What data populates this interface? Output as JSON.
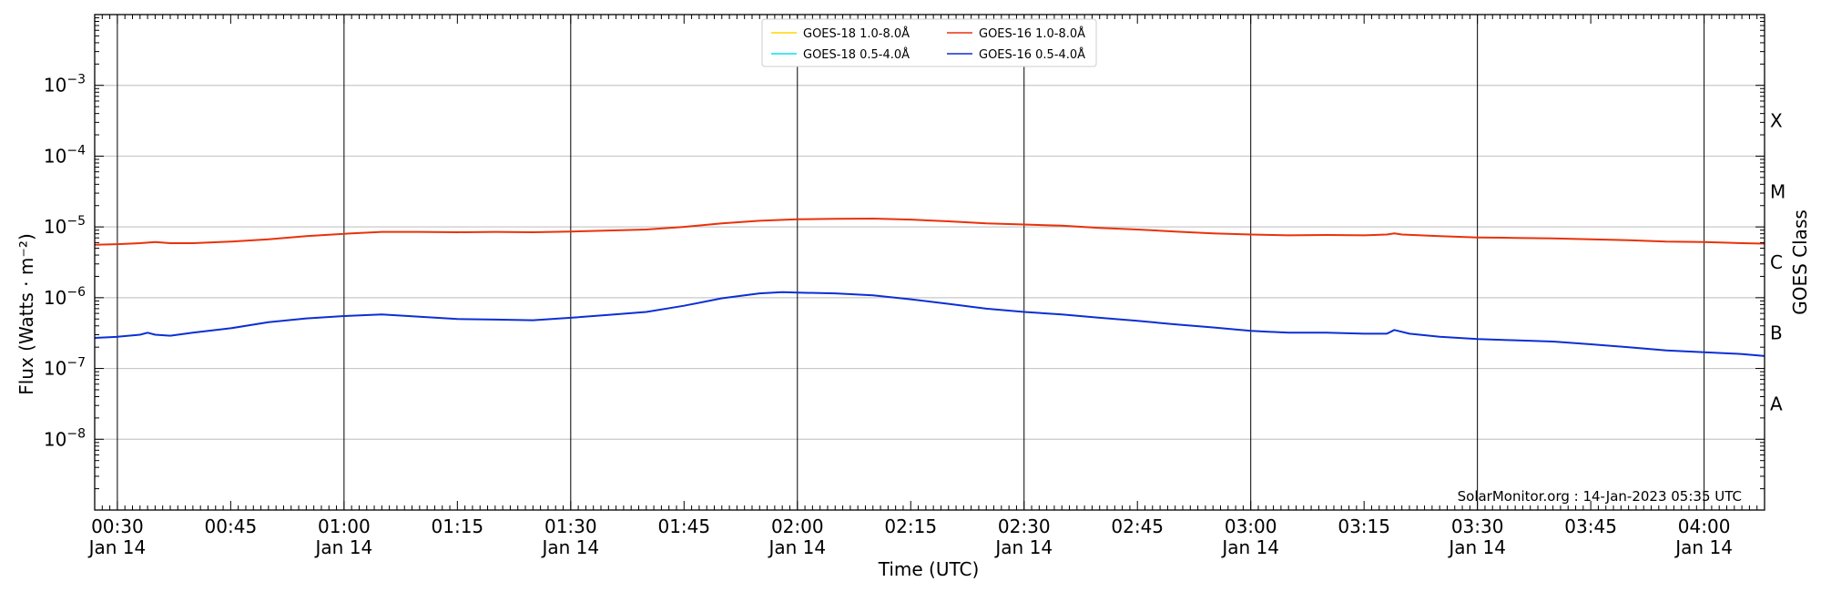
{
  "chart_data": {
    "type": "line",
    "xlabel": "Time (UTC)",
    "ylabel": "Flux (Watts · m⁻²)",
    "right_ylabel": "GOES Class",
    "xlim": [
      "00:27",
      "04:08"
    ],
    "ylim_log10": [
      -9,
      -2
    ],
    "y_scale": "log",
    "grid": "horizontal at decades, vertical every 30 min",
    "legend_position": "top-center",
    "credit": "SolarMonitor.org : 14-Jan-2023 05:35 UTC",
    "x_ticks": [
      {
        "time": "00:30",
        "label": "00:30",
        "date": "Jan 14"
      },
      {
        "time": "00:45",
        "label": "00:45",
        "date": ""
      },
      {
        "time": "01:00",
        "label": "01:00",
        "date": "Jan 14"
      },
      {
        "time": "01:15",
        "label": "01:15",
        "date": ""
      },
      {
        "time": "01:30",
        "label": "01:30",
        "date": "Jan 14"
      },
      {
        "time": "01:45",
        "label": "01:45",
        "date": ""
      },
      {
        "time": "02:00",
        "label": "02:00",
        "date": "Jan 14"
      },
      {
        "time": "02:15",
        "label": "02:15",
        "date": ""
      },
      {
        "time": "02:30",
        "label": "02:30",
        "date": "Jan 14"
      },
      {
        "time": "02:45",
        "label": "02:45",
        "date": ""
      },
      {
        "time": "03:00",
        "label": "03:00",
        "date": "Jan 14"
      },
      {
        "time": "03:15",
        "label": "03:15",
        "date": ""
      },
      {
        "time": "03:30",
        "label": "03:30",
        "date": "Jan 14"
      },
      {
        "time": "03:45",
        "label": "03:45",
        "date": ""
      },
      {
        "time": "04:00",
        "label": "04:00",
        "date": "Jan 14"
      }
    ],
    "y_ticks": [
      {
        "exp": -8,
        "base": "10",
        "power": "−8"
      },
      {
        "exp": -7,
        "base": "10",
        "power": "−7"
      },
      {
        "exp": -6,
        "base": "10",
        "power": "−6"
      },
      {
        "exp": -5,
        "base": "10",
        "power": "−5"
      },
      {
        "exp": -4,
        "base": "10",
        "power": "−4"
      },
      {
        "exp": -3,
        "base": "10",
        "power": "−3"
      }
    ],
    "goes_classes": [
      {
        "label": "A",
        "center_exp": -7.5
      },
      {
        "label": "B",
        "center_exp": -6.5
      },
      {
        "label": "C",
        "center_exp": -5.5
      },
      {
        "label": "M",
        "center_exp": -4.5
      },
      {
        "label": "X",
        "center_exp": -3.5
      }
    ],
    "series": [
      {
        "name": "GOES-18 1.0-8.0Å",
        "color": "#ffd700",
        "points": []
      },
      {
        "name": "GOES-18 0.5-4.0Å",
        "color": "#00e5ee",
        "points": []
      },
      {
        "name": "GOES-16 1.0-8.0Å",
        "color": "#e8320a",
        "points": [
          [
            "00:27",
            5.6e-06
          ],
          [
            "00:30",
            5.7e-06
          ],
          [
            "00:33",
            5.9e-06
          ],
          [
            "00:35",
            6.1e-06
          ],
          [
            "00:37",
            5.9e-06
          ],
          [
            "00:40",
            5.9e-06
          ],
          [
            "00:45",
            6.2e-06
          ],
          [
            "00:50",
            6.7e-06
          ],
          [
            "00:55",
            7.4e-06
          ],
          [
            "01:00",
            8e-06
          ],
          [
            "01:05",
            8.5e-06
          ],
          [
            "01:10",
            8.5e-06
          ],
          [
            "01:15",
            8.4e-06
          ],
          [
            "01:20",
            8.5e-06
          ],
          [
            "01:25",
            8.4e-06
          ],
          [
            "01:30",
            8.6e-06
          ],
          [
            "01:35",
            8.9e-06
          ],
          [
            "01:40",
            9.2e-06
          ],
          [
            "01:45",
            1e-05
          ],
          [
            "01:50",
            1.12e-05
          ],
          [
            "01:55",
            1.22e-05
          ],
          [
            "02:00",
            1.28e-05
          ],
          [
            "02:05",
            1.3e-05
          ],
          [
            "02:10",
            1.31e-05
          ],
          [
            "02:15",
            1.27e-05
          ],
          [
            "02:20",
            1.2e-05
          ],
          [
            "02:25",
            1.12e-05
          ],
          [
            "02:30",
            1.08e-05
          ],
          [
            "02:35",
            1.04e-05
          ],
          [
            "02:40",
            9.7e-06
          ],
          [
            "02:45",
            9.2e-06
          ],
          [
            "02:50",
            8.6e-06
          ],
          [
            "02:55",
            8.1e-06
          ],
          [
            "03:00",
            7.8e-06
          ],
          [
            "03:05",
            7.6e-06
          ],
          [
            "03:10",
            7.7e-06
          ],
          [
            "03:15",
            7.6e-06
          ],
          [
            "03:18",
            7.8e-06
          ],
          [
            "03:19",
            8.1e-06
          ],
          [
            "03:20",
            7.8e-06
          ],
          [
            "03:25",
            7.4e-06
          ],
          [
            "03:30",
            7.1e-06
          ],
          [
            "03:35",
            7e-06
          ],
          [
            "03:40",
            6.9e-06
          ],
          [
            "03:45",
            6.7e-06
          ],
          [
            "03:50",
            6.5e-06
          ],
          [
            "03:55",
            6.2e-06
          ],
          [
            "04:00",
            6.1e-06
          ],
          [
            "04:05",
            5.9e-06
          ],
          [
            "04:08",
            5.8e-06
          ]
        ]
      },
      {
        "name": "GOES-16 0.5-4.0Å",
        "color": "#0c2fd4",
        "points": [
          [
            "00:27",
            2.7e-07
          ],
          [
            "00:30",
            2.8e-07
          ],
          [
            "00:33",
            3e-07
          ],
          [
            "00:34",
            3.2e-07
          ],
          [
            "00:35",
            3e-07
          ],
          [
            "00:37",
            2.9e-07
          ],
          [
            "00:40",
            3.2e-07
          ],
          [
            "00:45",
            3.7e-07
          ],
          [
            "00:50",
            4.5e-07
          ],
          [
            "00:55",
            5.1e-07
          ],
          [
            "01:00",
            5.5e-07
          ],
          [
            "01:05",
            5.8e-07
          ],
          [
            "01:10",
            5.4e-07
          ],
          [
            "01:15",
            5e-07
          ],
          [
            "01:20",
            4.9e-07
          ],
          [
            "01:25",
            4.8e-07
          ],
          [
            "01:30",
            5.2e-07
          ],
          [
            "01:35",
            5.7e-07
          ],
          [
            "01:40",
            6.3e-07
          ],
          [
            "01:45",
            7.7e-07
          ],
          [
            "01:50",
            9.8e-07
          ],
          [
            "01:55",
            1.15e-06
          ],
          [
            "01:58",
            1.2e-06
          ],
          [
            "02:00",
            1.18e-06
          ],
          [
            "02:05",
            1.15e-06
          ],
          [
            "02:10",
            1.08e-06
          ],
          [
            "02:15",
            9.5e-07
          ],
          [
            "02:20",
            8.2e-07
          ],
          [
            "02:25",
            7e-07
          ],
          [
            "02:30",
            6.3e-07
          ],
          [
            "02:35",
            5.8e-07
          ],
          [
            "02:40",
            5.2e-07
          ],
          [
            "02:45",
            4.7e-07
          ],
          [
            "02:50",
            4.2e-07
          ],
          [
            "02:55",
            3.8e-07
          ],
          [
            "03:00",
            3.4e-07
          ],
          [
            "03:05",
            3.2e-07
          ],
          [
            "03:10",
            3.2e-07
          ],
          [
            "03:15",
            3.1e-07
          ],
          [
            "03:18",
            3.1e-07
          ],
          [
            "03:19",
            3.5e-07
          ],
          [
            "03:21",
            3.1e-07
          ],
          [
            "03:25",
            2.8e-07
          ],
          [
            "03:30",
            2.6e-07
          ],
          [
            "03:35",
            2.5e-07
          ],
          [
            "03:40",
            2.4e-07
          ],
          [
            "03:45",
            2.2e-07
          ],
          [
            "03:50",
            2e-07
          ],
          [
            "03:55",
            1.8e-07
          ],
          [
            "04:00",
            1.7e-07
          ],
          [
            "04:05",
            1.6e-07
          ],
          [
            "04:08",
            1.5e-07
          ]
        ]
      }
    ]
  }
}
